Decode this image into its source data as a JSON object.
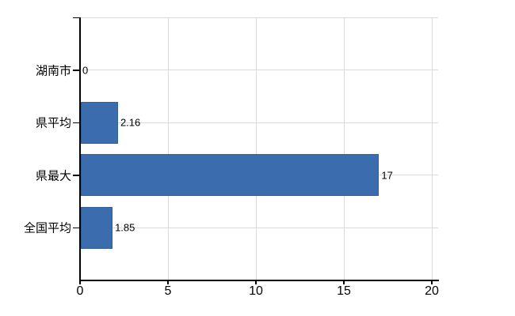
{
  "chart_data": {
    "type": "bar",
    "orientation": "horizontal",
    "categories": [
      "湖南市",
      "県平均",
      "県最大",
      "全国平均"
    ],
    "values": [
      0,
      2.16,
      17,
      1.85
    ],
    "value_labels": [
      "0",
      "2.16",
      "17",
      "1.85"
    ],
    "x_ticks": [
      0,
      5,
      10,
      15,
      20
    ],
    "x_tick_labels": [
      "0",
      "5",
      "10",
      "15",
      "20"
    ],
    "xlim": [
      0,
      20
    ],
    "grid": true,
    "legend": false,
    "bar_width_fraction": 0.8,
    "colors": {
      "bar_fill": "#3b6cae",
      "bar_border": "#31609d",
      "gridline": "#d9d9d9",
      "axis": "#000000",
      "text": "#000000",
      "background": "#ffffff"
    }
  }
}
